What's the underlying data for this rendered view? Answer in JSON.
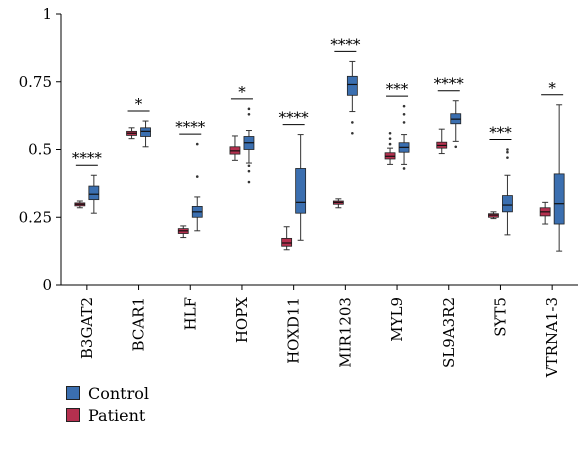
{
  "chart_data": {
    "type": "boxplot",
    "categories": [
      "B3GAT2",
      "BCAR1",
      "HLF",
      "HOPX",
      "HOXD11",
      "MIR1203",
      "MYL9",
      "SL9A3R2",
      "SYT5",
      "VTRNA1-3"
    ],
    "ylim": [
      0,
      1
    ],
    "yticks": [
      "0",
      "0.25",
      "0.5",
      "0.75",
      "1"
    ],
    "significance": [
      "****",
      "*",
      "****",
      "*",
      "****",
      "****",
      "***",
      "****",
      "***",
      "*"
    ],
    "series": [
      {
        "name": "Patient",
        "color": "#b5304f",
        "boxes": [
          {
            "whisker_low": 0.285,
            "q1": 0.292,
            "median": 0.298,
            "q3": 0.303,
            "whisker_high": 0.31,
            "outliers": []
          },
          {
            "whisker_low": 0.54,
            "q1": 0.552,
            "median": 0.56,
            "q3": 0.567,
            "whisker_high": 0.58,
            "outliers": []
          },
          {
            "whisker_low": 0.175,
            "q1": 0.19,
            "median": 0.2,
            "q3": 0.208,
            "whisker_high": 0.218,
            "outliers": []
          },
          {
            "whisker_low": 0.46,
            "q1": 0.483,
            "median": 0.495,
            "q3": 0.51,
            "whisker_high": 0.55,
            "outliers": []
          },
          {
            "whisker_low": 0.13,
            "q1": 0.143,
            "median": 0.155,
            "q3": 0.172,
            "whisker_high": 0.215,
            "outliers": []
          },
          {
            "whisker_low": 0.285,
            "q1": 0.298,
            "median": 0.305,
            "q3": 0.31,
            "whisker_high": 0.318,
            "outliers": []
          },
          {
            "whisker_low": 0.445,
            "q1": 0.465,
            "median": 0.475,
            "q3": 0.488,
            "whisker_high": 0.505,
            "outliers": [
              0.52,
              0.54,
              0.56
            ]
          },
          {
            "whisker_low": 0.485,
            "q1": 0.505,
            "median": 0.515,
            "q3": 0.527,
            "whisker_high": 0.575,
            "outliers": []
          },
          {
            "whisker_low": 0.245,
            "q1": 0.25,
            "median": 0.258,
            "q3": 0.263,
            "whisker_high": 0.27,
            "outliers": []
          },
          {
            "whisker_low": 0.225,
            "q1": 0.255,
            "median": 0.27,
            "q3": 0.285,
            "whisker_high": 0.305,
            "outliers": []
          }
        ]
      },
      {
        "name": "Control",
        "color": "#3b6fb0",
        "boxes": [
          {
            "whisker_low": 0.265,
            "q1": 0.315,
            "median": 0.335,
            "q3": 0.365,
            "whisker_high": 0.405,
            "outliers": []
          },
          {
            "whisker_low": 0.51,
            "q1": 0.548,
            "median": 0.567,
            "q3": 0.58,
            "whisker_high": 0.605,
            "outliers": []
          },
          {
            "whisker_low": 0.2,
            "q1": 0.25,
            "median": 0.27,
            "q3": 0.29,
            "whisker_high": 0.325,
            "outliers": [
              0.4,
              0.52
            ]
          },
          {
            "whisker_low": 0.45,
            "q1": 0.5,
            "median": 0.525,
            "q3": 0.548,
            "whisker_high": 0.57,
            "outliers": [
              0.38,
              0.42,
              0.44,
              0.63,
              0.65
            ]
          },
          {
            "whisker_low": 0.165,
            "q1": 0.265,
            "median": 0.305,
            "q3": 0.43,
            "whisker_high": 0.555,
            "outliers": []
          },
          {
            "whisker_low": 0.64,
            "q1": 0.7,
            "median": 0.74,
            "q3": 0.77,
            "whisker_high": 0.825,
            "outliers": [
              0.56,
              0.6
            ]
          },
          {
            "whisker_low": 0.445,
            "q1": 0.49,
            "median": 0.508,
            "q3": 0.525,
            "whisker_high": 0.555,
            "outliers": [
              0.43,
              0.6,
              0.63,
              0.66
            ]
          },
          {
            "whisker_low": 0.53,
            "q1": 0.595,
            "median": 0.612,
            "q3": 0.632,
            "whisker_high": 0.68,
            "outliers": [
              0.51
            ]
          },
          {
            "whisker_low": 0.185,
            "q1": 0.27,
            "median": 0.295,
            "q3": 0.33,
            "whisker_high": 0.405,
            "outliers": [
              0.47,
              0.49,
              0.5
            ]
          },
          {
            "whisker_low": 0.125,
            "q1": 0.225,
            "median": 0.3,
            "q3": 0.41,
            "whisker_high": 0.665,
            "outliers": []
          }
        ]
      }
    ]
  }
}
